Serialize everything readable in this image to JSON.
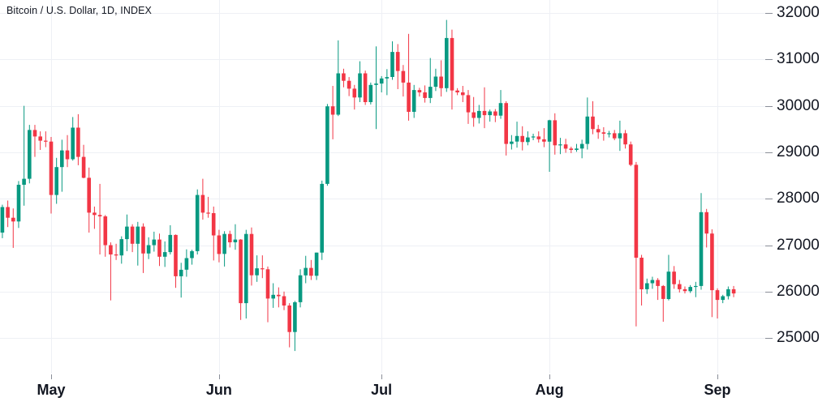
{
  "header": {
    "title": "Bitcoin / U.S. Dollar, 1D, INDEX"
  },
  "colors": {
    "up": "#089981",
    "down": "#f23645",
    "grid": "#eef0f5",
    "axis_tick": "#8a8e98",
    "text": "#131722",
    "background": "#ffffff"
  },
  "chart_data": {
    "type": "candlestick",
    "title": "Bitcoin / U.S. Dollar, 1D, INDEX",
    "symbol": "Bitcoin / U.S. Dollar",
    "interval": "1D",
    "exchange": "INDEX",
    "grid": true,
    "y_axis": {
      "side": "right",
      "ticks": [
        32000,
        31000,
        30000,
        29000,
        28000,
        27000,
        26000,
        25000
      ],
      "range": [
        24700,
        32250
      ]
    },
    "x_axis": {
      "months": [
        {
          "label": "May",
          "index": 9
        },
        {
          "label": "Jun",
          "index": 40
        },
        {
          "label": "Jul",
          "index": 70
        },
        {
          "label": "Aug",
          "index": 101
        },
        {
          "label": "Sep",
          "index": 132
        }
      ]
    },
    "columns": [
      "date",
      "open",
      "high",
      "low",
      "close"
    ],
    "candles": [
      [
        "Apr 22",
        27270,
        27870,
        27150,
        27820
      ],
      [
        "Apr 23",
        27820,
        27960,
        27390,
        27590
      ],
      [
        "Apr 24",
        27590,
        27790,
        26940,
        27510
      ],
      [
        "Apr 25",
        27510,
        28380,
        27370,
        28300
      ],
      [
        "Apr 26",
        28300,
        30000,
        27850,
        28430
      ],
      [
        "Apr 27",
        28430,
        29590,
        28330,
        29480
      ],
      [
        "Apr 28",
        29480,
        29590,
        28900,
        29340
      ],
      [
        "Apr 29",
        29340,
        29450,
        29050,
        29250
      ],
      [
        "Apr 30",
        29250,
        29450,
        29110,
        29230
      ],
      [
        "May 1",
        29230,
        29330,
        27680,
        28080
      ],
      [
        "May 2",
        28080,
        28880,
        27890,
        28680
      ],
      [
        "May 3",
        28680,
        29270,
        28150,
        29040
      ],
      [
        "May 4",
        29040,
        29370,
        28680,
        28850
      ],
      [
        "May 5",
        28850,
        29760,
        28820,
        29530
      ],
      [
        "May 6",
        29530,
        29820,
        28720,
        28900
      ],
      [
        "May 7",
        28900,
        29160,
        28440,
        28450
      ],
      [
        "May 8",
        28450,
        28670,
        27270,
        27700
      ],
      [
        "May 9",
        27700,
        27830,
        27350,
        27650
      ],
      [
        "May 10",
        27650,
        28320,
        26800,
        27620
      ],
      [
        "May 11",
        27620,
        27650,
        26750,
        27000
      ],
      [
        "May 12",
        27000,
        27060,
        25810,
        26800
      ],
      [
        "May 13",
        26800,
        27030,
        26680,
        26780
      ],
      [
        "May 14",
        26780,
        27190,
        26600,
        27130
      ],
      [
        "May 15",
        27130,
        27660,
        26870,
        27400
      ],
      [
        "May 16",
        27400,
        27450,
        26850,
        27030
      ],
      [
        "May 17",
        27030,
        27500,
        26560,
        27400
      ],
      [
        "May 18",
        27400,
        27470,
        26400,
        26820
      ],
      [
        "May 19",
        26820,
        27170,
        26700,
        27000
      ],
      [
        "May 20",
        27000,
        27290,
        26860,
        27120
      ],
      [
        "May 21",
        27120,
        27250,
        26550,
        26750
      ],
      [
        "May 22",
        26750,
        27080,
        26530,
        26850
      ],
      [
        "May 23",
        26850,
        27430,
        26800,
        27220
      ],
      [
        "May 24",
        27220,
        27230,
        26080,
        26330
      ],
      [
        "May 25",
        26330,
        26620,
        25870,
        26470
      ],
      [
        "May 26",
        26470,
        26910,
        26320,
        26720
      ],
      [
        "May 27",
        26720,
        26900,
        26580,
        26870
      ],
      [
        "May 28",
        26870,
        28200,
        26800,
        28080
      ],
      [
        "May 29",
        28080,
        28430,
        27550,
        27700
      ],
      [
        "May 30",
        27700,
        28040,
        27590,
        27690
      ],
      [
        "May 31",
        27690,
        27830,
        26670,
        27210
      ],
      [
        "Jun 1",
        27210,
        27330,
        26630,
        26810
      ],
      [
        "Jun 2",
        26810,
        27300,
        26540,
        27240
      ],
      [
        "Jun 3",
        27240,
        27310,
        26950,
        27060
      ],
      [
        "Jun 4",
        27060,
        27450,
        26900,
        27120
      ],
      [
        "Jun 5",
        27120,
        27130,
        25390,
        25750
      ],
      [
        "Jun 6",
        25750,
        27330,
        25420,
        27240
      ],
      [
        "Jun 7",
        27240,
        27380,
        26130,
        26350
      ],
      [
        "Jun 8",
        26350,
        26780,
        26210,
        26500
      ],
      [
        "Jun 9",
        26500,
        26780,
        26290,
        26480
      ],
      [
        "Jun 10",
        26480,
        26540,
        25340,
        25850
      ],
      [
        "Jun 11",
        25850,
        26180,
        25650,
        25930
      ],
      [
        "Jun 12",
        25930,
        26090,
        25660,
        25900
      ],
      [
        "Jun 13",
        25900,
        26000,
        25600,
        25700
      ],
      [
        "Jun 14",
        25700,
        25750,
        24800,
        25130
      ],
      [
        "Jun 15",
        25130,
        25800,
        24720,
        25770
      ],
      [
        "Jun 16",
        25770,
        26480,
        25660,
        26350
      ],
      [
        "Jun 17",
        26350,
        26770,
        26180,
        26510
      ],
      [
        "Jun 18",
        26510,
        26680,
        26250,
        26340
      ],
      [
        "Jun 19",
        26340,
        26840,
        26250,
        26840
      ],
      [
        "Jun 20",
        26840,
        28390,
        26680,
        28320
      ],
      [
        "Jun 21",
        28320,
        30040,
        28280,
        29990
      ],
      [
        "Jun 22",
        29990,
        30430,
        29280,
        29810
      ],
      [
        "Jun 23",
        29810,
        31410,
        29780,
        30700
      ],
      [
        "Jun 24",
        30700,
        30800,
        30400,
        30540
      ],
      [
        "Jun 25",
        30540,
        30620,
        30210,
        30370
      ],
      [
        "Jun 26",
        30370,
        30450,
        29920,
        30180
      ],
      [
        "Jun 27",
        30180,
        30960,
        30080,
        30700
      ],
      [
        "Jun 28",
        30700,
        30760,
        30020,
        30080
      ],
      [
        "Jun 29",
        30080,
        30500,
        30030,
        30450
      ],
      [
        "Jun 30",
        30450,
        31280,
        29500,
        30480
      ],
      [
        "Jul 1",
        30480,
        30640,
        30290,
        30590
      ],
      [
        "Jul 2",
        30590,
        30790,
        30230,
        30620
      ],
      [
        "Jul 3",
        30620,
        31390,
        30560,
        31160
      ],
      [
        "Jul 4",
        31160,
        31330,
        30360,
        30750
      ],
      [
        "Jul 5",
        30750,
        30880,
        30200,
        30500
      ],
      [
        "Jul 6",
        30500,
        31550,
        29680,
        29870
      ],
      [
        "Jul 7",
        29870,
        30450,
        29740,
        30340
      ],
      [
        "Jul 8",
        30340,
        30390,
        30200,
        30290
      ],
      [
        "Jul 9",
        30290,
        30440,
        30070,
        30170
      ],
      [
        "Jul 10",
        30170,
        31030,
        30060,
        30410
      ],
      [
        "Jul 11",
        30410,
        30800,
        30320,
        30630
      ],
      [
        "Jul 12",
        30630,
        30980,
        30200,
        30380
      ],
      [
        "Jul 13",
        30380,
        31850,
        30300,
        31460
      ],
      [
        "Jul 14",
        31460,
        31640,
        29920,
        30330
      ],
      [
        "Jul 15",
        30330,
        30380,
        30230,
        30290
      ],
      [
        "Jul 16",
        30290,
        30430,
        30080,
        30230
      ],
      [
        "Jul 17",
        30230,
        30340,
        29610,
        29860
      ],
      [
        "Jul 18",
        29860,
        30190,
        29550,
        29740
      ],
      [
        "Jul 19",
        29740,
        30020,
        29620,
        29890
      ],
      [
        "Jul 20",
        29890,
        30400,
        29520,
        29800
      ],
      [
        "Jul 21",
        29800,
        29920,
        29660,
        29880
      ],
      [
        "Jul 22",
        29880,
        29930,
        29650,
        29790
      ],
      [
        "Jul 23",
        29790,
        30340,
        29720,
        30060
      ],
      [
        "Jul 24",
        30060,
        30100,
        28930,
        29180
      ],
      [
        "Jul 25",
        29180,
        29370,
        29060,
        29230
      ],
      [
        "Jul 26",
        29230,
        29660,
        29100,
        29350
      ],
      [
        "Jul 27",
        29350,
        29560,
        29040,
        29220
      ],
      [
        "Jul 28",
        29220,
        29450,
        29150,
        29320
      ],
      [
        "Jul 29",
        29320,
        29400,
        29260,
        29340
      ],
      [
        "Jul 30",
        29340,
        29450,
        29210,
        29280
      ],
      [
        "Jul 31",
        29280,
        29520,
        29110,
        29230
      ],
      [
        "Aug 1",
        29230,
        29700,
        28580,
        29690
      ],
      [
        "Aug 2",
        29690,
        29840,
        28950,
        29150
      ],
      [
        "Aug 3",
        29150,
        29310,
        28960,
        29170
      ],
      [
        "Aug 4",
        29170,
        29290,
        28990,
        29080
      ],
      [
        "Aug 5",
        29080,
        29120,
        28980,
        29050
      ],
      [
        "Aug 6",
        29050,
        29180,
        29010,
        29080
      ],
      [
        "Aug 7",
        29080,
        29270,
        28870,
        29180
      ],
      [
        "Aug 8",
        29180,
        30180,
        29060,
        29770
      ],
      [
        "Aug 9",
        29770,
        30100,
        29390,
        29500
      ],
      [
        "Aug 10",
        29500,
        29590,
        29290,
        29430
      ],
      [
        "Aug 11",
        29430,
        29540,
        29250,
        29400
      ],
      [
        "Aug 12",
        29400,
        29460,
        29320,
        29410
      ],
      [
        "Aug 13",
        29410,
        29480,
        29260,
        29300
      ],
      [
        "Aug 14",
        29300,
        29680,
        29030,
        29410
      ],
      [
        "Aug 15",
        29410,
        29480,
        29080,
        29170
      ],
      [
        "Aug 16",
        29170,
        29230,
        28700,
        28730
      ],
      [
        "Aug 17",
        28730,
        28790,
        25250,
        26730
      ],
      [
        "Aug 18",
        26730,
        26790,
        25700,
        26050
      ],
      [
        "Aug 19",
        26050,
        26280,
        25950,
        26180
      ],
      [
        "Aug 20",
        26180,
        26320,
        26060,
        26250
      ],
      [
        "Aug 21",
        26250,
        26290,
        25820,
        26120
      ],
      [
        "Aug 22",
        26120,
        26140,
        25350,
        25840
      ],
      [
        "Aug 23",
        25840,
        26790,
        25810,
        26430
      ],
      [
        "Aug 24",
        26430,
        26550,
        26060,
        26160
      ],
      [
        "Aug 25",
        26160,
        26250,
        25980,
        26050
      ],
      [
        "Aug 26",
        26050,
        26110,
        25960,
        26010
      ],
      [
        "Aug 27",
        26010,
        26140,
        25970,
        26100
      ],
      [
        "Aug 28",
        26100,
        26210,
        25880,
        26120
      ],
      [
        "Aug 29",
        26120,
        28120,
        26040,
        27710
      ],
      [
        "Aug 30",
        27710,
        27780,
        26950,
        27250
      ],
      [
        "Aug 31",
        27250,
        27340,
        25450,
        26030
      ],
      [
        "Sep 1",
        26030,
        26070,
        25420,
        25820
      ],
      [
        "Sep 2",
        25820,
        25930,
        25750,
        25900
      ],
      [
        "Sep 3",
        25900,
        26110,
        25830,
        26050
      ],
      [
        "Sep 4",
        26050,
        26120,
        25880,
        25960
      ]
    ]
  }
}
